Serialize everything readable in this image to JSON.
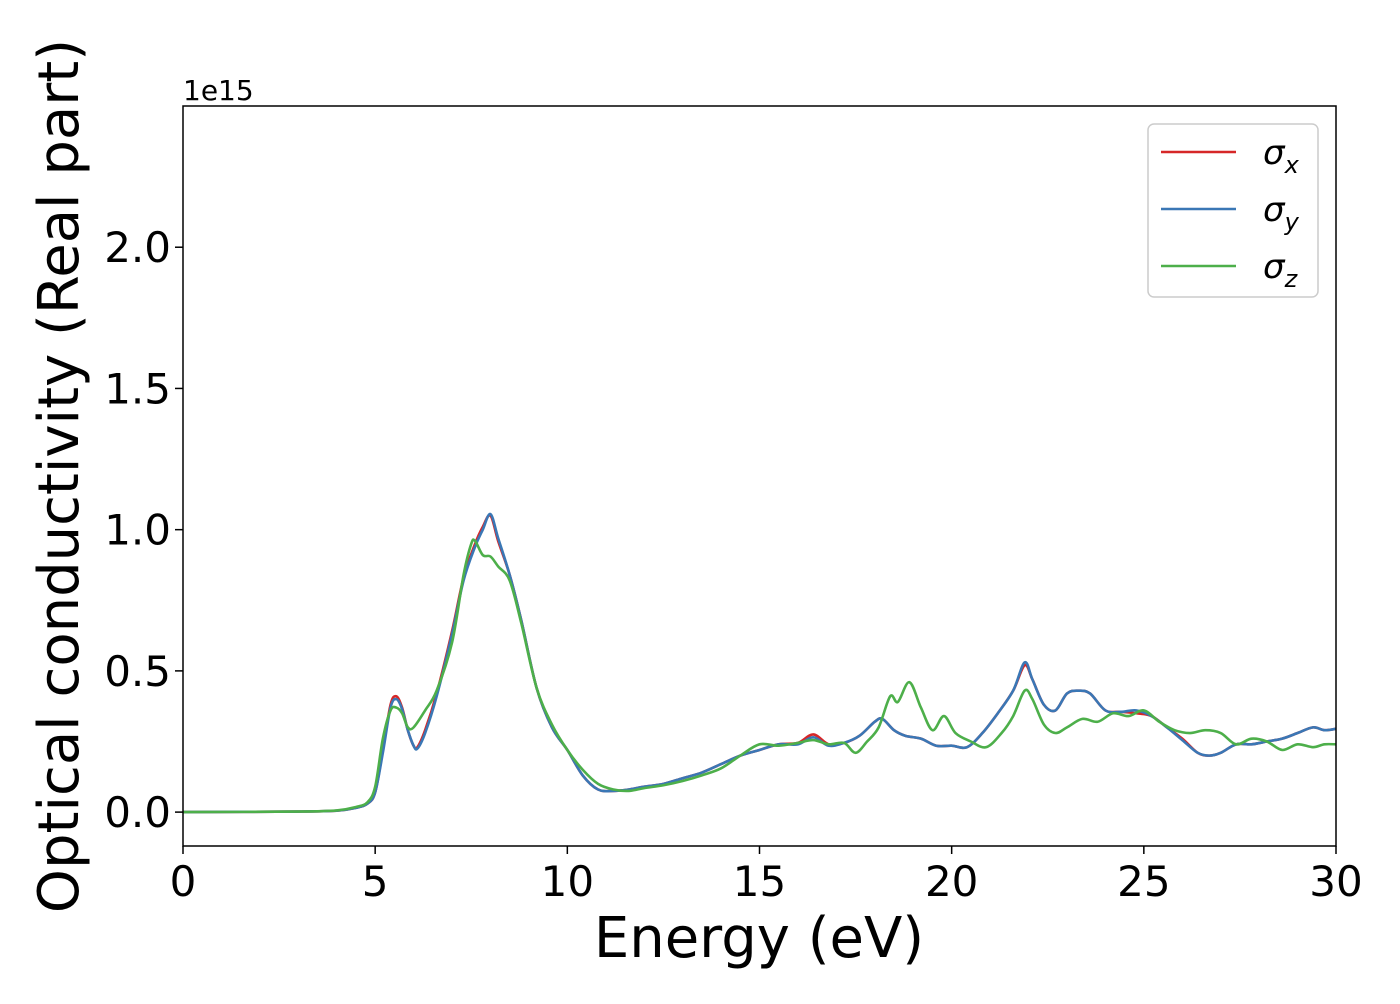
{
  "chart_data": {
    "type": "line",
    "xlabel": "Energy (eV)",
    "ylabel": "Optical conductivity (Real part)",
    "y_offset_label": "1e15",
    "xlim": [
      0,
      30
    ],
    "ylim": [
      -0.12,
      2.5
    ],
    "x_ticks": [
      0,
      5,
      10,
      15,
      20,
      25,
      30
    ],
    "x_tick_labels": [
      "0",
      "5",
      "10",
      "15",
      "20",
      "25",
      "30"
    ],
    "y_ticks": [
      0.0,
      0.5,
      1.0,
      1.5,
      2.0
    ],
    "y_tick_labels": [
      "0.0",
      "0.5",
      "1.0",
      "1.5",
      "2.0"
    ],
    "grid": false,
    "legend_position": "top-right",
    "series": [
      {
        "name": "σ",
        "name_sub": "x",
        "color": "#d62728",
        "x": [
          0,
          3,
          4,
          4.5,
          4.8,
          5.0,
          5.2,
          5.4,
          5.55,
          5.7,
          5.85,
          6.0,
          6.1,
          6.3,
          6.6,
          7.0,
          7.3,
          7.6,
          7.8,
          8.0,
          8.2,
          8.5,
          8.8,
          9.2,
          9.6,
          10.0,
          10.4,
          10.8,
          11.2,
          11.6,
          12.0,
          12.5,
          13.0,
          13.5,
          14.0,
          14.5,
          15.0,
          15.5,
          16.0,
          16.4,
          16.8,
          17.2,
          17.6,
          18.0,
          18.2,
          18.5,
          18.8,
          19.2,
          19.6,
          20.0,
          20.4,
          20.8,
          21.2,
          21.6,
          21.9,
          22.1,
          22.4,
          22.7,
          23.0,
          23.3,
          23.6,
          24.0,
          24.4,
          24.8,
          25.2,
          25.6,
          26.0,
          26.4,
          26.7,
          27.0,
          27.4,
          27.8,
          28.2,
          28.6,
          29.0,
          29.4,
          29.7,
          30.0
        ],
        "y": [
          0,
          0.002,
          0.005,
          0.015,
          0.03,
          0.07,
          0.22,
          0.38,
          0.41,
          0.37,
          0.29,
          0.235,
          0.23,
          0.29,
          0.42,
          0.64,
          0.83,
          0.95,
          1.01,
          1.05,
          0.96,
          0.84,
          0.68,
          0.44,
          0.3,
          0.22,
          0.13,
          0.08,
          0.075,
          0.08,
          0.09,
          0.1,
          0.12,
          0.14,
          0.17,
          0.2,
          0.22,
          0.24,
          0.245,
          0.275,
          0.24,
          0.245,
          0.27,
          0.32,
          0.33,
          0.29,
          0.27,
          0.26,
          0.235,
          0.235,
          0.23,
          0.28,
          0.35,
          0.43,
          0.52,
          0.47,
          0.38,
          0.36,
          0.42,
          0.43,
          0.42,
          0.36,
          0.355,
          0.35,
          0.34,
          0.3,
          0.26,
          0.21,
          0.2,
          0.21,
          0.24,
          0.24,
          0.25,
          0.26,
          0.28,
          0.3,
          0.29,
          0.295
        ]
      },
      {
        "name": "σ",
        "name_sub": "y",
        "color": "#3a77b5",
        "x": [
          0,
          3,
          4,
          4.5,
          4.8,
          5.0,
          5.2,
          5.4,
          5.55,
          5.7,
          5.85,
          6.0,
          6.1,
          6.3,
          6.6,
          7.0,
          7.3,
          7.6,
          7.8,
          8.0,
          8.2,
          8.5,
          8.8,
          9.2,
          9.6,
          10.0,
          10.4,
          10.8,
          11.2,
          11.6,
          12.0,
          12.5,
          13.0,
          13.5,
          14.0,
          14.5,
          15.0,
          15.5,
          16.0,
          16.4,
          16.8,
          17.2,
          17.6,
          18.0,
          18.2,
          18.5,
          18.8,
          19.2,
          19.6,
          20.0,
          20.4,
          20.8,
          21.2,
          21.6,
          21.9,
          22.1,
          22.4,
          22.7,
          23.0,
          23.3,
          23.6,
          24.0,
          24.4,
          24.8,
          25.2,
          25.6,
          26.0,
          26.4,
          26.7,
          27.0,
          27.4,
          27.8,
          28.2,
          28.6,
          29.0,
          29.4,
          29.7,
          30.0
        ],
        "y": [
          0,
          0.002,
          0.005,
          0.015,
          0.03,
          0.07,
          0.21,
          0.37,
          0.4,
          0.365,
          0.29,
          0.235,
          0.225,
          0.28,
          0.41,
          0.63,
          0.82,
          0.94,
          1.0,
          1.055,
          0.97,
          0.84,
          0.68,
          0.44,
          0.3,
          0.22,
          0.13,
          0.08,
          0.075,
          0.08,
          0.09,
          0.1,
          0.12,
          0.14,
          0.17,
          0.2,
          0.22,
          0.24,
          0.24,
          0.265,
          0.235,
          0.245,
          0.27,
          0.32,
          0.33,
          0.29,
          0.27,
          0.26,
          0.235,
          0.235,
          0.23,
          0.28,
          0.35,
          0.43,
          0.53,
          0.47,
          0.38,
          0.36,
          0.42,
          0.43,
          0.42,
          0.36,
          0.355,
          0.36,
          0.34,
          0.3,
          0.255,
          0.21,
          0.2,
          0.21,
          0.24,
          0.24,
          0.25,
          0.26,
          0.28,
          0.3,
          0.29,
          0.295
        ]
      },
      {
        "name": "σ",
        "name_sub": "z",
        "color": "#4daf4a",
        "x": [
          0,
          3,
          4,
          4.5,
          4.8,
          5.0,
          5.2,
          5.4,
          5.55,
          5.7,
          5.85,
          6.0,
          6.3,
          6.6,
          7.0,
          7.3,
          7.5,
          7.6,
          7.8,
          8.0,
          8.2,
          8.5,
          8.8,
          9.2,
          9.6,
          10.0,
          10.4,
          10.8,
          11.2,
          11.6,
          12.0,
          12.5,
          13.0,
          13.5,
          14.0,
          14.5,
          15.0,
          15.5,
          16.0,
          16.4,
          16.8,
          17.2,
          17.5,
          17.8,
          18.1,
          18.4,
          18.6,
          18.9,
          19.2,
          19.5,
          19.8,
          20.1,
          20.5,
          20.9,
          21.3,
          21.6,
          21.9,
          22.1,
          22.4,
          22.7,
          23.0,
          23.4,
          23.8,
          24.2,
          24.6,
          25.0,
          25.4,
          25.8,
          26.2,
          26.6,
          27.0,
          27.4,
          27.8,
          28.2,
          28.6,
          29.0,
          29.4,
          29.7,
          30.0
        ],
        "y": [
          0,
          0.002,
          0.006,
          0.018,
          0.035,
          0.09,
          0.26,
          0.36,
          0.37,
          0.35,
          0.3,
          0.3,
          0.36,
          0.43,
          0.6,
          0.84,
          0.95,
          0.96,
          0.91,
          0.905,
          0.87,
          0.82,
          0.67,
          0.44,
          0.31,
          0.22,
          0.15,
          0.1,
          0.08,
          0.075,
          0.085,
          0.095,
          0.11,
          0.13,
          0.155,
          0.2,
          0.24,
          0.235,
          0.245,
          0.255,
          0.24,
          0.245,
          0.21,
          0.25,
          0.3,
          0.41,
          0.39,
          0.46,
          0.37,
          0.29,
          0.34,
          0.28,
          0.25,
          0.23,
          0.28,
          0.34,
          0.43,
          0.4,
          0.31,
          0.28,
          0.3,
          0.33,
          0.32,
          0.35,
          0.34,
          0.36,
          0.32,
          0.29,
          0.28,
          0.29,
          0.28,
          0.24,
          0.26,
          0.25,
          0.22,
          0.24,
          0.23,
          0.24,
          0.24
        ]
      }
    ]
  }
}
